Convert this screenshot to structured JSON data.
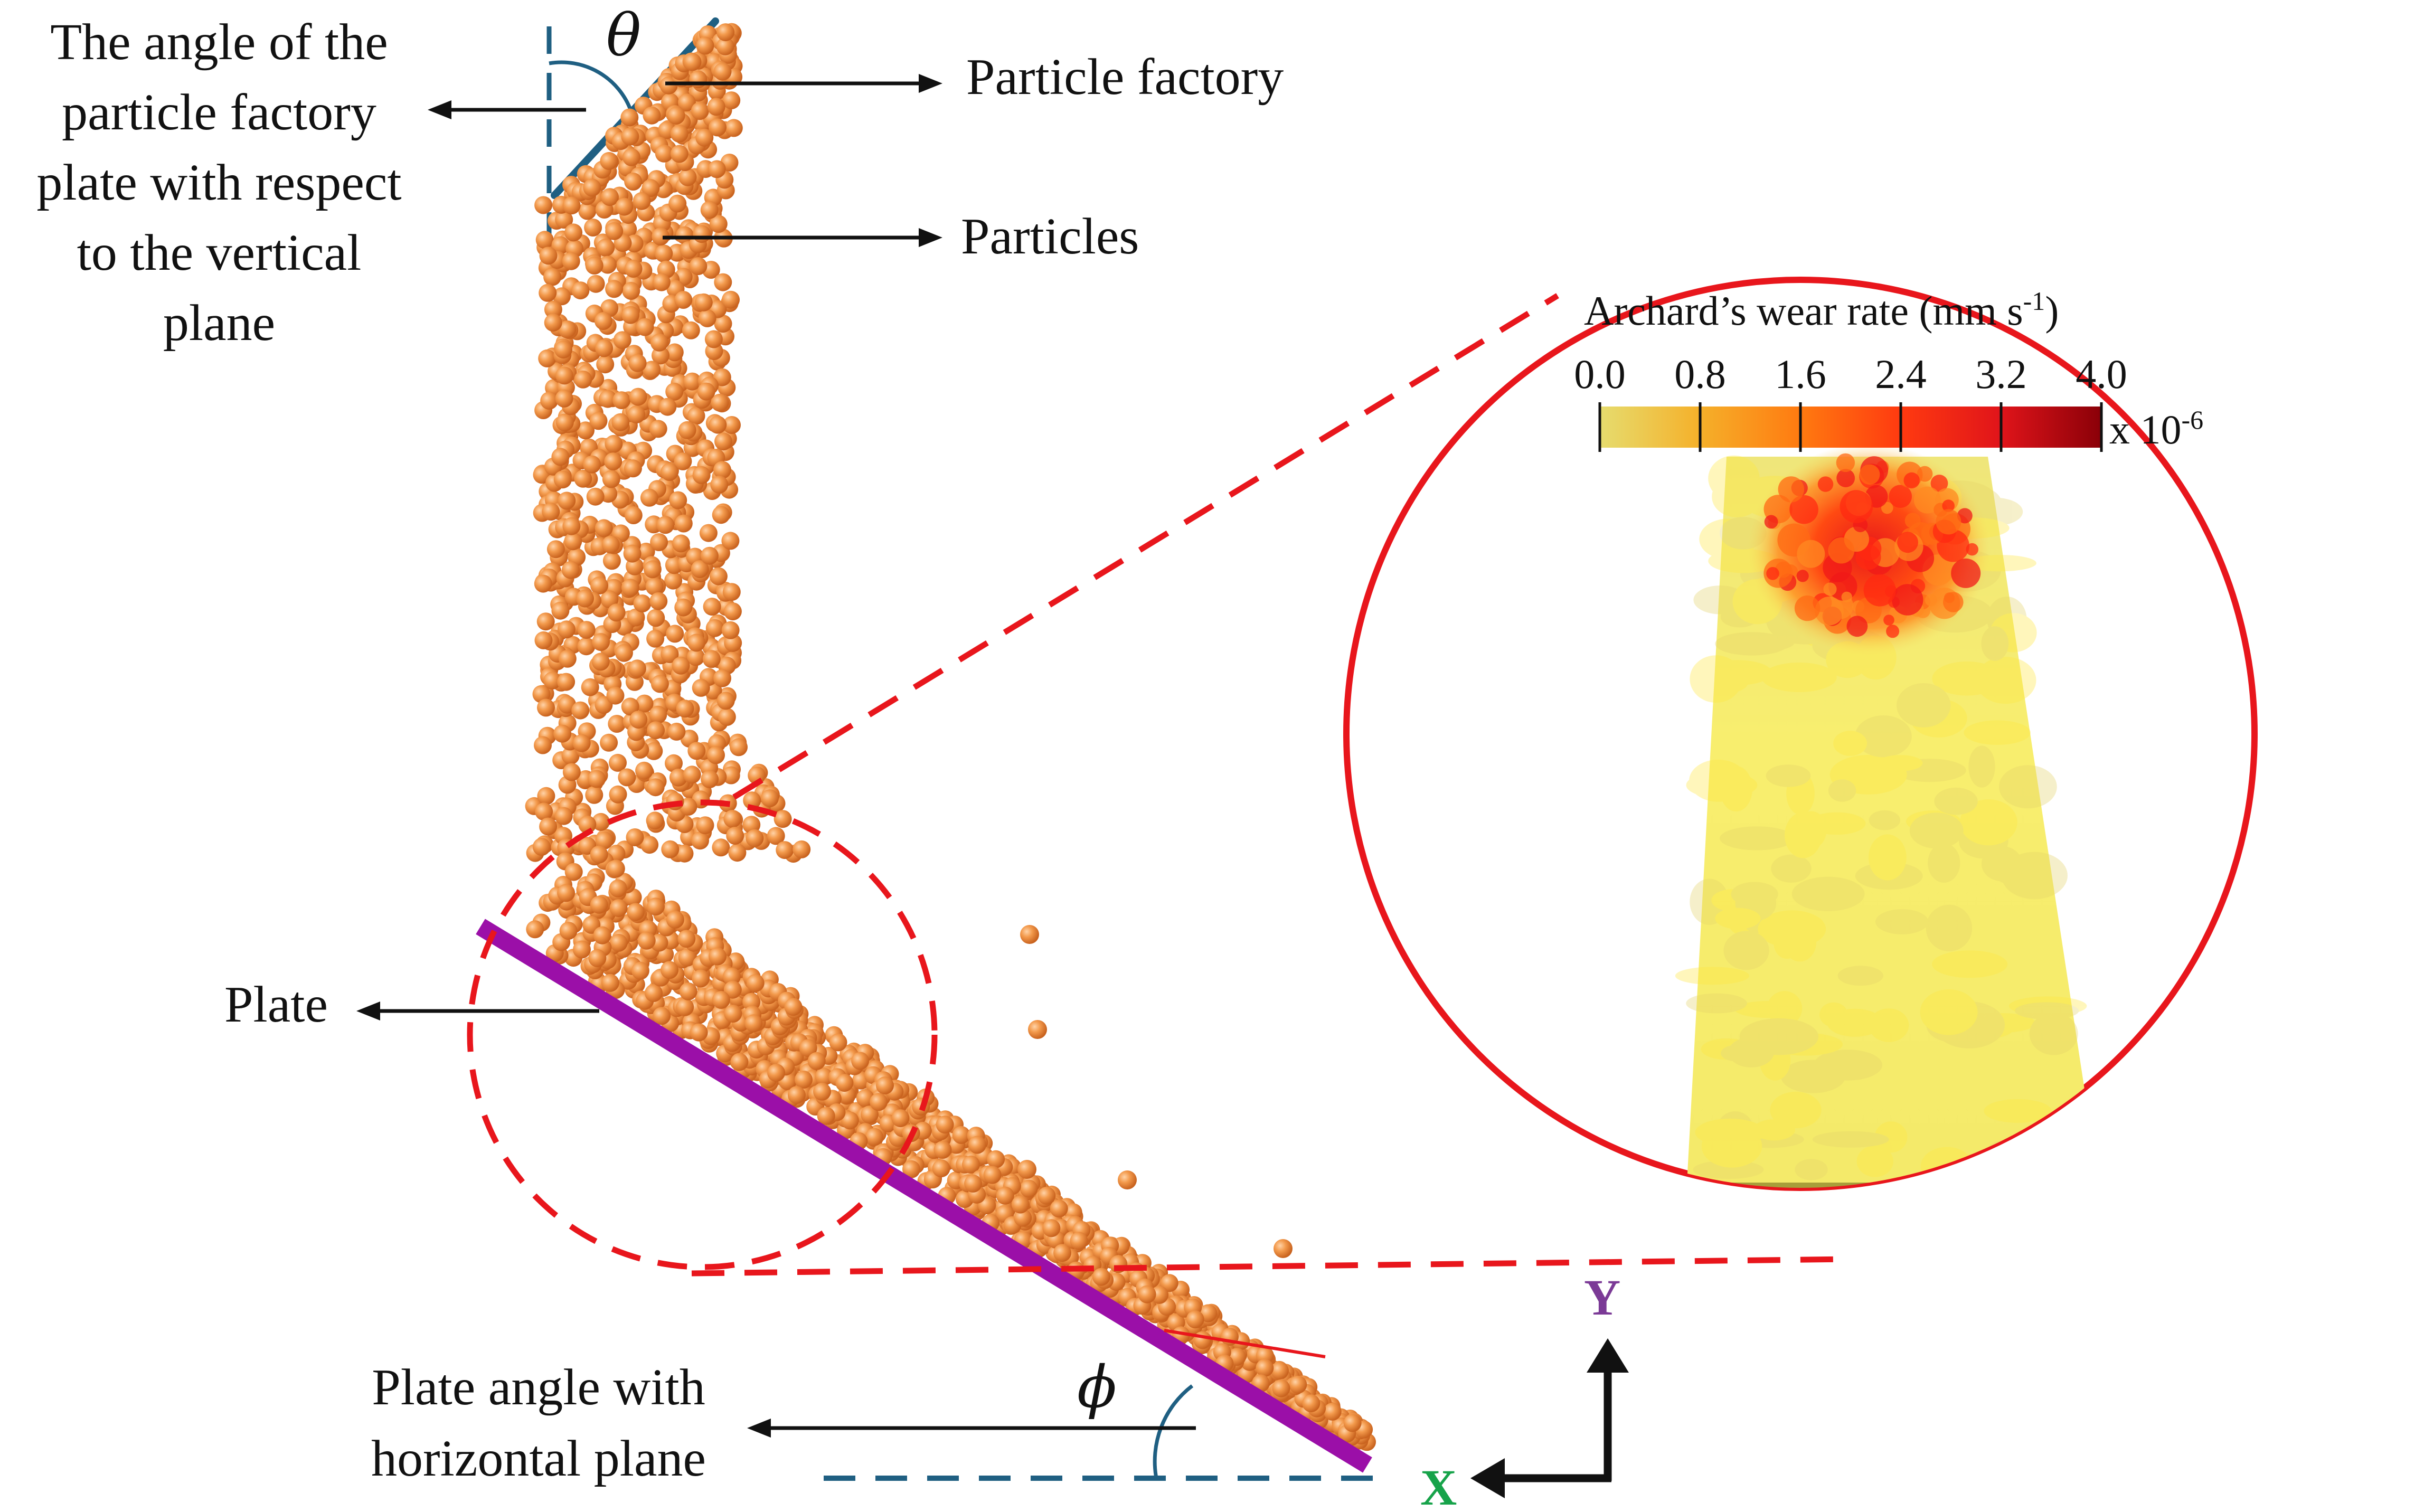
{
  "labels": {
    "theta_symbol": "θ",
    "phi_symbol": "ϕ",
    "angle_factory": [
      "The angle of the",
      "particle factory",
      "plate with respect",
      "to the vertical",
      "plane"
    ],
    "particle_factory": "Particle factory",
    "particles": "Particles",
    "plate": "Plate",
    "plate_angle": [
      "Plate angle with",
      "horizontal plane"
    ]
  },
  "axes": {
    "y_label": "Y",
    "x_label": "X"
  },
  "colorbar": {
    "title_main": "Archard’s wear rate (mm s",
    "title_sup": "-1",
    "title_end": ")",
    "ticks": [
      "0.0",
      "0.8",
      "1.6",
      "2.4",
      "3.2",
      "4.0"
    ],
    "multiplier_base": "x 10",
    "multiplier_exp": "-6"
  },
  "colors": {
    "plate": "#9b0fa8",
    "factory": "#1f5f82",
    "particle": "#f08a3c",
    "zoom": "#e8161c",
    "axis_y": "#7b3a96",
    "axis_x": "#17a34a",
    "cb_stops": [
      "#e6dc6e",
      "#f5b02a",
      "#ff7a10",
      "#ff3a10",
      "#e0141a",
      "#8a0008"
    ]
  }
}
